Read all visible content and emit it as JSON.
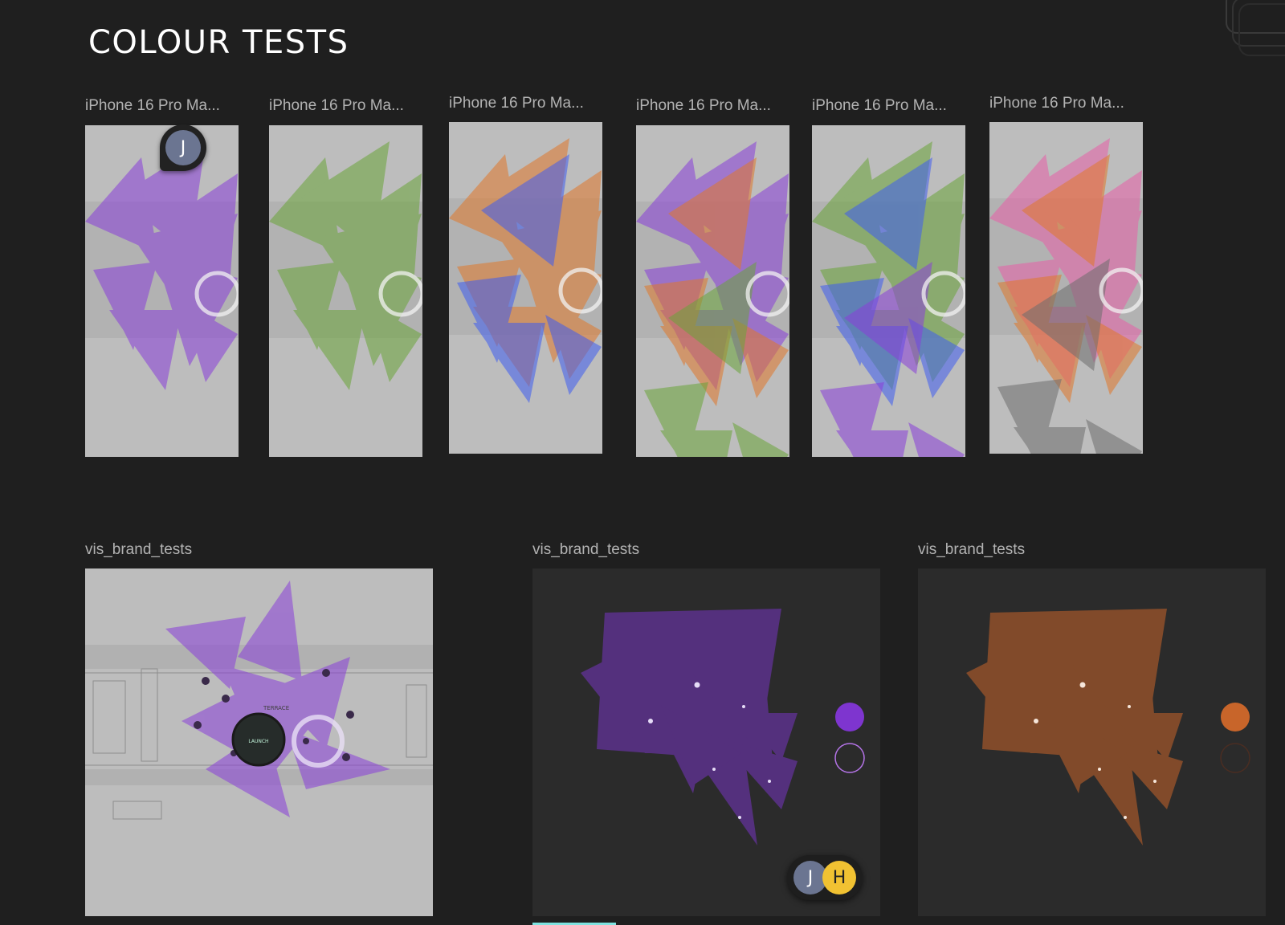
{
  "page": {
    "title": "COLOUR TESTS"
  },
  "colors": {
    "purple": "#8a3fd9",
    "green": "#6aa43a",
    "orange": "#e0782a",
    "blue": "#3f5df0",
    "pink": "#e85fa8",
    "grey": "#6e6e6e",
    "canvas_light": "#bdbdbd",
    "canvas_dark": "#2b2b2b"
  },
  "phone_frames": [
    {
      "label": "iPhone 16 Pro Ma...",
      "palette": [
        "purple"
      ]
    },
    {
      "label": "iPhone 16 Pro Ma...",
      "palette": [
        "green"
      ]
    },
    {
      "label": "iPhone 16 Pro Ma...",
      "palette": [
        "orange",
        "blue"
      ]
    },
    {
      "label": "iPhone 16 Pro Ma...",
      "palette": [
        "purple",
        "orange",
        "green"
      ]
    },
    {
      "label": "iPhone 16 Pro Ma...",
      "palette": [
        "green",
        "blue",
        "purple"
      ]
    },
    {
      "label": "iPhone 16 Pro Ma...",
      "palette": [
        "pink",
        "orange",
        "grey"
      ]
    }
  ],
  "brand_frames": [
    {
      "label": "vis_brand_tests",
      "theme": "light-map",
      "accent": "purple",
      "map_labels": {
        "area": "TERRACE",
        "button": "LAUNCH"
      }
    },
    {
      "label": "vis_brand_tests",
      "theme": "dark",
      "accent": "purple"
    },
    {
      "label": "vis_brand_tests",
      "theme": "dark",
      "accent": "orange"
    }
  ],
  "collaborators": {
    "pin_avatar": "J",
    "group": [
      "J",
      "H"
    ],
    "group_colors": [
      "#6b7591",
      "#f1c232"
    ]
  },
  "icons": {
    "pin": "avatar-pin-icon",
    "panel": "corner-panel"
  }
}
